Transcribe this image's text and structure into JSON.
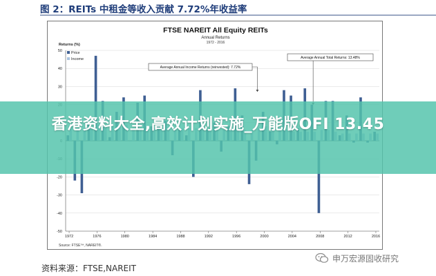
{
  "figure": {
    "title": "图 2：REITs 中租金等收入贡献 7.72%年收益率",
    "source": "资料来源：FTSE,NAREIT"
  },
  "banner": {
    "text": "香港资料大全,高效计划实施_万能版OFI 13.45"
  },
  "watermark": {
    "text": "申万宏源固收研究",
    "icon": "wechat-icon"
  },
  "chart_data": {
    "type": "bar",
    "title": "FTSE NAREIT All Equity REITs",
    "subtitle": "Annual Returns",
    "years_label": "1972 - 2016",
    "ylabel": "Returns (%)",
    "ylim": [
      -50,
      50
    ],
    "yticks": [
      50,
      40,
      30,
      20,
      10,
      0,
      -10,
      -20,
      -30,
      -40,
      -50
    ],
    "xticks": [
      "1972",
      "1976",
      "1980",
      "1984",
      "1988",
      "1992",
      "1996",
      "2000",
      "2004",
      "2008",
      "2012",
      "2016"
    ],
    "x": [
      1972,
      1973,
      1974,
      1975,
      1976,
      1977,
      1978,
      1979,
      1980,
      1981,
      1982,
      1983,
      1984,
      1985,
      1986,
      1987,
      1988,
      1989,
      1990,
      1991,
      1992,
      1993,
      1994,
      1995,
      1996,
      1997,
      1998,
      1999,
      2000,
      2001,
      2002,
      2003,
      2004,
      2005,
      2006,
      2007,
      2008,
      2009,
      2010,
      2011,
      2012,
      2013,
      2014,
      2015,
      2016
    ],
    "legend_position": "top-left",
    "grid": true,
    "series": [
      {
        "name": "Price",
        "color": "#3f5f93",
        "values": [
          3,
          -22,
          -29,
          11,
          47,
          22,
          2,
          16,
          24,
          0,
          21,
          25,
          8,
          9,
          11,
          -8,
          6,
          3,
          -20,
          28,
          6,
          10,
          -6,
          8,
          29,
          14,
          -24,
          -11,
          16,
          5,
          -2,
          28,
          25,
          7,
          29,
          20,
          -40,
          22,
          22,
          3,
          14,
          -1,
          24,
          -1,
          5
        ]
      },
      {
        "name": "Income",
        "color": "#a9c2de",
        "values": [
          8,
          7,
          7,
          8,
          9,
          8,
          8,
          8,
          9,
          7,
          7,
          7,
          7,
          8,
          7,
          7,
          7,
          7,
          7,
          8,
          7,
          6,
          6,
          7,
          6,
          6,
          6,
          7,
          8,
          7,
          7,
          6,
          5,
          5,
          5,
          5,
          6,
          6,
          5,
          4,
          4,
          4,
          4,
          4,
          4
        ]
      }
    ],
    "annotations": [
      {
        "text": "Average Annual Income Returns (reinvested): 7.72%",
        "target_year": 1999
      },
      {
        "text": "Average Annual Total Returns: 13.48%",
        "target_year": 2007
      }
    ],
    "source_note": "Source: FTSE™, NAREIT®."
  }
}
